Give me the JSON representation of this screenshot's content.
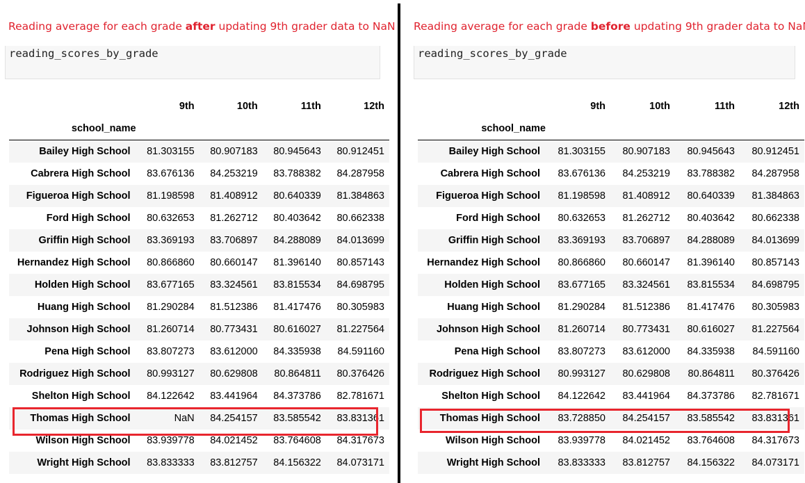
{
  "colors": {
    "caption": "#e0232f",
    "highlight": "#e8262e",
    "divider": "#000000"
  },
  "panels": {
    "after": {
      "caption_prefix": "Reading average for each grade ",
      "caption_emphasis": "after",
      "caption_suffix": " updating 9th grader data to NaN",
      "code": "reading_scores_by_grade",
      "index_name": "school_name",
      "columns": [
        "9th",
        "10th",
        "11th",
        "12th"
      ],
      "rows": [
        {
          "school": "Bailey High School",
          "values": [
            "81.303155",
            "80.907183",
            "80.945643",
            "80.912451"
          ]
        },
        {
          "school": "Cabrera High School",
          "values": [
            "83.676136",
            "84.253219",
            "83.788382",
            "84.287958"
          ]
        },
        {
          "school": "Figueroa High School",
          "values": [
            "81.198598",
            "81.408912",
            "80.640339",
            "81.384863"
          ]
        },
        {
          "school": "Ford High School",
          "values": [
            "80.632653",
            "81.262712",
            "80.403642",
            "80.662338"
          ]
        },
        {
          "school": "Griffin High School",
          "values": [
            "83.369193",
            "83.706897",
            "84.288089",
            "84.013699"
          ]
        },
        {
          "school": "Hernandez High School",
          "values": [
            "80.866860",
            "80.660147",
            "81.396140",
            "80.857143"
          ]
        },
        {
          "school": "Holden High School",
          "values": [
            "83.677165",
            "83.324561",
            "83.815534",
            "84.698795"
          ]
        },
        {
          "school": "Huang High School",
          "values": [
            "81.290284",
            "81.512386",
            "81.417476",
            "80.305983"
          ]
        },
        {
          "school": "Johnson High School",
          "values": [
            "81.260714",
            "80.773431",
            "80.616027",
            "81.227564"
          ]
        },
        {
          "school": "Pena High School",
          "values": [
            "83.807273",
            "83.612000",
            "84.335938",
            "84.591160"
          ]
        },
        {
          "school": "Rodriguez High School",
          "values": [
            "80.993127",
            "80.629808",
            "80.864811",
            "80.376426"
          ]
        },
        {
          "school": "Shelton High School",
          "values": [
            "84.122642",
            "83.441964",
            "84.373786",
            "82.781671"
          ]
        },
        {
          "school": "Thomas High School",
          "values": [
            "NaN",
            "84.254157",
            "83.585542",
            "83.831361"
          ]
        },
        {
          "school": "Wilson High School",
          "values": [
            "83.939778",
            "84.021452",
            "83.764608",
            "84.317673"
          ]
        },
        {
          "school": "Wright High School",
          "values": [
            "83.833333",
            "83.812757",
            "84.156322",
            "84.073171"
          ]
        }
      ]
    },
    "before": {
      "caption_prefix": "Reading average for each grade ",
      "caption_emphasis": "before",
      "caption_suffix": " updating 9th grader data to NaN",
      "code": "reading_scores_by_grade",
      "index_name": "school_name",
      "columns": [
        "9th",
        "10th",
        "11th",
        "12th"
      ],
      "rows": [
        {
          "school": "Bailey High School",
          "values": [
            "81.303155",
            "80.907183",
            "80.945643",
            "80.912451"
          ]
        },
        {
          "school": "Cabrera High School",
          "values": [
            "83.676136",
            "84.253219",
            "83.788382",
            "84.287958"
          ]
        },
        {
          "school": "Figueroa High School",
          "values": [
            "81.198598",
            "81.408912",
            "80.640339",
            "81.384863"
          ]
        },
        {
          "school": "Ford High School",
          "values": [
            "80.632653",
            "81.262712",
            "80.403642",
            "80.662338"
          ]
        },
        {
          "school": "Griffin High School",
          "values": [
            "83.369193",
            "83.706897",
            "84.288089",
            "84.013699"
          ]
        },
        {
          "school": "Hernandez High School",
          "values": [
            "80.866860",
            "80.660147",
            "81.396140",
            "80.857143"
          ]
        },
        {
          "school": "Holden High School",
          "values": [
            "83.677165",
            "83.324561",
            "83.815534",
            "84.698795"
          ]
        },
        {
          "school": "Huang High School",
          "values": [
            "81.290284",
            "81.512386",
            "81.417476",
            "80.305983"
          ]
        },
        {
          "school": "Johnson High School",
          "values": [
            "81.260714",
            "80.773431",
            "80.616027",
            "81.227564"
          ]
        },
        {
          "school": "Pena High School",
          "values": [
            "83.807273",
            "83.612000",
            "84.335938",
            "84.591160"
          ]
        },
        {
          "school": "Rodriguez High School",
          "values": [
            "80.993127",
            "80.629808",
            "80.864811",
            "80.376426"
          ]
        },
        {
          "school": "Shelton High School",
          "values": [
            "84.122642",
            "83.441964",
            "84.373786",
            "82.781671"
          ]
        },
        {
          "school": "Thomas High School",
          "values": [
            "83.728850",
            "84.254157",
            "83.585542",
            "83.831361"
          ]
        },
        {
          "school": "Wilson High School",
          "values": [
            "83.939778",
            "84.021452",
            "83.764608",
            "84.317673"
          ]
        },
        {
          "school": "Wright High School",
          "values": [
            "83.833333",
            "83.812757",
            "84.156322",
            "84.073171"
          ]
        }
      ]
    }
  }
}
